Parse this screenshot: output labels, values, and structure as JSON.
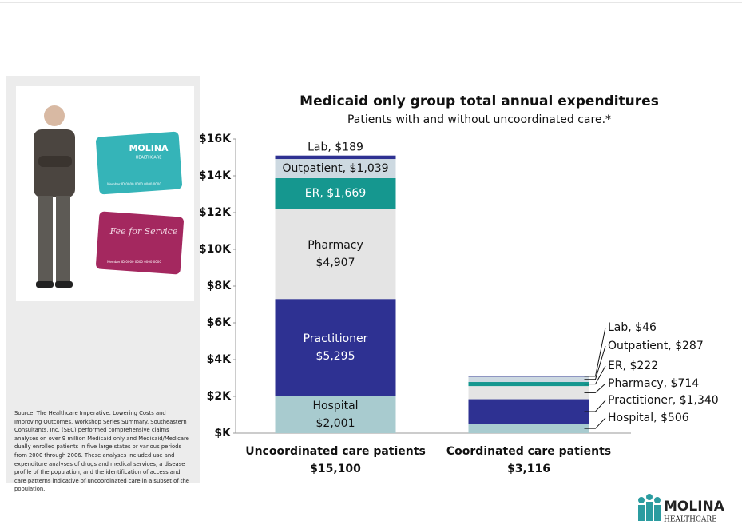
{
  "chart_data": {
    "type": "stacked_bar",
    "title": "Medicaid only group total annual expenditures",
    "subtitle": "Patients with and without uncoordinated care.*",
    "categories": [
      "Uncoordinated care patients",
      "Coordinated care patients"
    ],
    "totals": {
      "values": [
        15100,
        3116
      ],
      "value_labels": [
        "$15,100",
        "$3,116"
      ]
    },
    "ylim": [
      0,
      16000
    ],
    "yticks": [
      {
        "value": 0,
        "label": "$K"
      },
      {
        "value": 2000,
        "label": "$2K"
      },
      {
        "value": 4000,
        "label": "$4K"
      },
      {
        "value": 6000,
        "label": "$6K"
      },
      {
        "value": 8000,
        "label": "$8K"
      },
      {
        "value": 10000,
        "label": "$10K"
      },
      {
        "value": 12000,
        "label": "$12K"
      },
      {
        "value": 14000,
        "label": "$14K"
      },
      {
        "value": 16000,
        "label": "$16K"
      }
    ],
    "series": [
      {
        "name": "Hospital",
        "color": "#a8cbcf",
        "values": [
          2001,
          506
        ],
        "value_labels": [
          [
            "Hospital",
            "$2,001"
          ],
          [
            "Hospital, $506"
          ]
        ]
      },
      {
        "name": "Practitioner",
        "color": "#2e3192",
        "values": [
          5295,
          1340
        ],
        "value_labels": [
          [
            "Practitioner",
            "$5,295"
          ],
          [
            "Practitioner, $1,340"
          ]
        ]
      },
      {
        "name": "Pharmacy",
        "color": "#e4e4e4",
        "values": [
          4907,
          714
        ],
        "value_labels": [
          [
            "Pharmacy",
            "$4,907"
          ],
          [
            "Pharmacy, $714"
          ]
        ]
      },
      {
        "name": "ER",
        "color": "#15978f",
        "values": [
          1669,
          222
        ],
        "value_labels": [
          [
            "ER, $1,669"
          ],
          [
            "ER, $222"
          ]
        ]
      },
      {
        "name": "Outpatient",
        "color": "#cdd9e1",
        "values": [
          1039,
          287
        ],
        "value_labels": [
          [
            "Outpatient, $1,039"
          ],
          [
            "Outpatient, $287"
          ]
        ]
      },
      {
        "name": "Lab",
        "color": "#2e3192",
        "values": [
          189,
          46
        ],
        "value_labels": [
          [
            "Lab, $189"
          ],
          [
            "Lab, $46"
          ]
        ]
      }
    ]
  },
  "panel": {
    "source": "Source:  The Healthcare Imperative:  Lowering Costs and Improving Outcomes.  Workshop Series Summary.  Southeastern Consultants, Inc. (SEC) performed comprehensive claims analyses on over 9 million Medicaid only and Medicaid/Medicare dually enrolled patients in five large states or various periods from 2000 through 2006. These analyses included use and expenditure analyses of drugs and medical services, a disease profile of the population, and the identification of access and care patterns indicative of uncoordinated care in a subset of the population.",
    "card1_brand": "MOLINA",
    "card1_sub": "HEALTHCARE",
    "card2_text": "Fee for Service",
    "card_member": "Member ID 0000 0000 0000 0000"
  },
  "logo": {
    "name": "MOLINA",
    "sub": "HEALTHCARE"
  }
}
